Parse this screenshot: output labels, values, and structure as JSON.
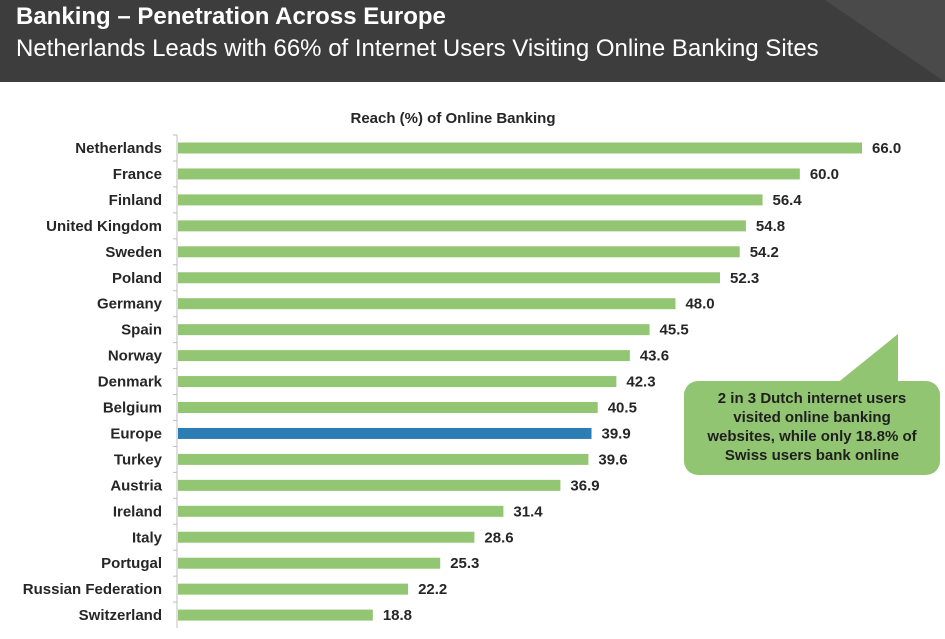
{
  "header": {
    "title": "Banking – Penetration Across Europe",
    "subtitle": "Netherlands Leads with 66% of Internet Users Visiting Online Banking Sites"
  },
  "callout": {
    "text": "2 in 3 Dutch internet users visited online banking websites, while only 18.8% of Swiss users bank online"
  },
  "colors": {
    "bar": "#93c673",
    "highlight": "#2d7db5",
    "axis": "#bfbfbf",
    "label": "#262626"
  },
  "chart_data": {
    "type": "bar",
    "orientation": "horizontal",
    "title": "Reach (%) of Online Banking",
    "xlabel": "",
    "ylabel": "",
    "xlim": [
      0,
      66
    ],
    "grid": false,
    "categories": [
      "Netherlands",
      "France",
      "Finland",
      "United Kingdom",
      "Sweden",
      "Poland",
      "Germany",
      "Spain",
      "Norway",
      "Denmark",
      "Belgium",
      "Europe",
      "Turkey",
      "Austria",
      "Ireland",
      "Italy",
      "Portugal",
      "Russian Federation",
      "Switzerland"
    ],
    "values": [
      66.0,
      60.0,
      56.4,
      54.8,
      54.2,
      52.3,
      48.0,
      45.5,
      43.6,
      42.3,
      40.5,
      39.9,
      39.6,
      36.9,
      31.4,
      28.6,
      25.3,
      22.2,
      18.8
    ],
    "value_labels": [
      "66.0",
      "60.0",
      "56.4",
      "54.8",
      "54.2",
      "52.3",
      "48.0",
      "45.5",
      "43.6",
      "42.3",
      "40.5",
      "39.9",
      "39.6",
      "36.9",
      "31.4",
      "28.6",
      "25.3",
      "22.2",
      "18.8"
    ],
    "highlight": "Europe"
  }
}
